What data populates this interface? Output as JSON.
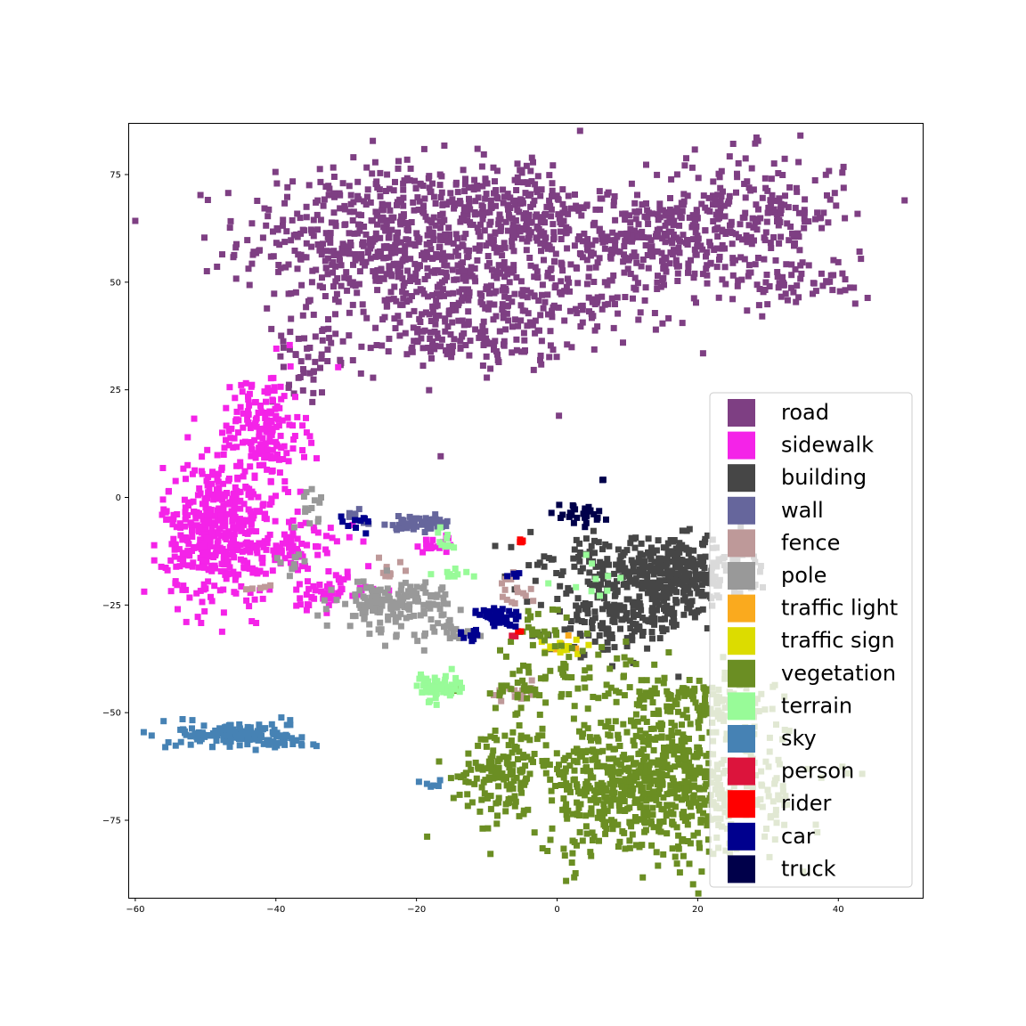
{
  "chart_data": {
    "type": "scatter",
    "title": "",
    "xlabel": "",
    "ylabel": "",
    "xlim": [
      -61,
      52
    ],
    "ylim": [
      -93,
      87
    ],
    "xticks": [
      -60,
      -40,
      -20,
      0,
      20,
      40
    ],
    "yticks": [
      75,
      50,
      25,
      0,
      -25,
      -50,
      -75
    ],
    "xtick_labels": [
      "−60",
      "−40",
      "−20",
      "0",
      "20",
      "40"
    ],
    "ytick_labels": [
      "75",
      "50",
      "25",
      "0",
      "−25",
      "−50",
      "−75"
    ],
    "grid": false,
    "marker": "square",
    "legend_position": "lower-right",
    "series": [
      {
        "name": "road",
        "color": "#7e3f83",
        "clusters": [
          {
            "cx": -25,
            "cy": 60,
            "sx": 10,
            "sy": 9,
            "n": 520
          },
          {
            "cx": -12,
            "cy": 52,
            "sx": 9,
            "sy": 11,
            "n": 300
          },
          {
            "cx": -5,
            "cy": 68,
            "sx": 5,
            "sy": 5,
            "n": 140
          },
          {
            "cx": 12,
            "cy": 60,
            "sx": 8,
            "sy": 5,
            "n": 260
          },
          {
            "cx": 27,
            "cy": 66,
            "sx": 7,
            "sy": 7,
            "n": 240
          },
          {
            "cx": 0,
            "cy": 45,
            "sx": 10,
            "sy": 4,
            "n": 120
          },
          {
            "cx": 35,
            "cy": 50,
            "sx": 5,
            "sy": 3,
            "n": 60
          },
          {
            "cx": -36,
            "cy": 32,
            "sx": 2,
            "sy": 4,
            "n": 40
          },
          {
            "cx": -15,
            "cy": 37,
            "sx": 8,
            "sy": 3,
            "n": 100
          }
        ]
      },
      {
        "name": "sidewalk",
        "color": "#f423e8",
        "clusters": [
          {
            "cx": -48,
            "cy": -8,
            "sx": 4,
            "sy": 8,
            "n": 430
          },
          {
            "cx": -42,
            "cy": 15,
            "sx": 3,
            "sy": 7,
            "n": 180
          },
          {
            "cx": -37,
            "cy": -12,
            "sx": 4,
            "sy": 3,
            "n": 80
          },
          {
            "cx": -33,
            "cy": -22,
            "sx": 3,
            "sy": 2,
            "n": 50
          },
          {
            "cx": -17,
            "cy": -11,
            "sx": 2,
            "sy": 1,
            "n": 20
          }
        ]
      },
      {
        "name": "building",
        "color": "#464646",
        "clusters": [
          {
            "cx": 17,
            "cy": -18,
            "sx": 5,
            "sy": 4,
            "n": 330
          },
          {
            "cx": 9,
            "cy": -28,
            "sx": 5,
            "sy": 4,
            "n": 180
          },
          {
            "cx": 6,
            "cy": -15,
            "sx": 5,
            "sy": 3,
            "n": 80
          }
        ]
      },
      {
        "name": "wall",
        "color": "#66669c",
        "clusters": [
          {
            "cx": -20,
            "cy": -6,
            "sx": 3,
            "sy": 0.8,
            "n": 60
          },
          {
            "cx": -29,
            "cy": -4,
            "sx": 1,
            "sy": 1,
            "n": 6
          }
        ]
      },
      {
        "name": "fence",
        "color": "#be9999",
        "clusters": [
          {
            "cx": -6,
            "cy": -23,
            "sx": 1,
            "sy": 2,
            "n": 15
          },
          {
            "cx": -5,
            "cy": -45,
            "sx": 1.2,
            "sy": 1,
            "n": 15
          },
          {
            "cx": -42,
            "cy": -21,
            "sx": 1,
            "sy": 0.5,
            "n": 5
          },
          {
            "cx": -24,
            "cy": -17,
            "sx": 1.5,
            "sy": 1,
            "n": 10
          }
        ]
      },
      {
        "name": "pole",
        "color": "#999999",
        "clusters": [
          {
            "cx": -23,
            "cy": -25,
            "sx": 4,
            "sy": 3,
            "n": 160
          },
          {
            "cx": -35,
            "cy": -2,
            "sx": 1,
            "sy": 2,
            "n": 15
          },
          {
            "cx": -15,
            "cy": -31,
            "sx": 2,
            "sy": 1,
            "n": 15
          },
          {
            "cx": -38,
            "cy": -15,
            "sx": 2,
            "sy": 2,
            "n": 10
          }
        ]
      },
      {
        "name": "traffic light",
        "color": "#faaa1e",
        "clusters": [
          {
            "cx": 0,
            "cy": -34,
            "sx": 1.5,
            "sy": 1,
            "n": 6
          }
        ]
      },
      {
        "name": "traffic sign",
        "color": "#dcdc00",
        "clusters": [
          {
            "cx": 1,
            "cy": -35,
            "sx": 2,
            "sy": 1.2,
            "n": 15
          }
        ]
      },
      {
        "name": "vegetation",
        "color": "#6b8e23",
        "clusters": [
          {
            "cx": 14,
            "cy": -67,
            "sx": 9,
            "sy": 8,
            "n": 820
          },
          {
            "cx": -8,
            "cy": -63,
            "sx": 3,
            "sy": 5,
            "n": 120
          },
          {
            "cx": 3,
            "cy": -42,
            "sx": 6,
            "sy": 4,
            "n": 80
          },
          {
            "cx": 20,
            "cy": -47,
            "sx": 5,
            "sy": 3,
            "n": 120
          },
          {
            "cx": -8,
            "cy": -45,
            "sx": 3,
            "sy": 1,
            "n": 15
          },
          {
            "cx": -2,
            "cy": -30,
            "sx": 3,
            "sy": 3,
            "n": 30
          }
        ]
      },
      {
        "name": "terrain",
        "color": "#98fb98",
        "clusters": [
          {
            "cx": -17,
            "cy": -44,
            "sx": 1.5,
            "sy": 1.5,
            "n": 60
          },
          {
            "cx": -16,
            "cy": -18,
            "sx": 2,
            "sy": 0.6,
            "n": 10
          },
          {
            "cx": -16,
            "cy": -9,
            "sx": 0.7,
            "sy": 1.5,
            "n": 10
          },
          {
            "cx": 5,
            "cy": -20,
            "sx": 2,
            "sy": 3,
            "n": 10
          }
        ]
      },
      {
        "name": "sky",
        "color": "#4682b4",
        "clusters": [
          {
            "cx": -46,
            "cy": -55,
            "sx": 4,
            "sy": 1.5,
            "n": 140
          },
          {
            "cx": -38,
            "cy": -57,
            "sx": 2,
            "sy": 1,
            "n": 20
          },
          {
            "cx": -18,
            "cy": -67,
            "sx": 0.8,
            "sy": 0.8,
            "n": 6
          }
        ]
      },
      {
        "name": "person",
        "color": "#dc143c",
        "clusters": [
          {
            "cx": -6,
            "cy": -32,
            "sx": 0.4,
            "sy": 0.4,
            "n": 3
          }
        ]
      },
      {
        "name": "rider",
        "color": "#ff0000",
        "clusters": [
          {
            "cx": -5,
            "cy": -10,
            "sx": 0.4,
            "sy": 0.4,
            "n": 5
          },
          {
            "cx": -5,
            "cy": -31,
            "sx": 0.2,
            "sy": 0.2,
            "n": 2
          }
        ]
      },
      {
        "name": "car",
        "color": "#00008e",
        "clusters": [
          {
            "cx": -8,
            "cy": -28,
            "sx": 1.5,
            "sy": 1.5,
            "n": 40
          },
          {
            "cx": -12,
            "cy": -32,
            "sx": 1,
            "sy": 0.8,
            "n": 10
          },
          {
            "cx": -6,
            "cy": -18,
            "sx": 0.5,
            "sy": 0.5,
            "n": 5
          },
          {
            "cx": -28,
            "cy": -6,
            "sx": 1.5,
            "sy": 1,
            "n": 10
          }
        ]
      },
      {
        "name": "truck",
        "color": "#00004a",
        "clusters": [
          {
            "cx": 3,
            "cy": -4,
            "sx": 2,
            "sy": 1.5,
            "n": 30
          },
          {
            "cx": 7,
            "cy": 4,
            "sx": 0.3,
            "sy": 0.3,
            "n": 2
          }
        ]
      }
    ]
  }
}
